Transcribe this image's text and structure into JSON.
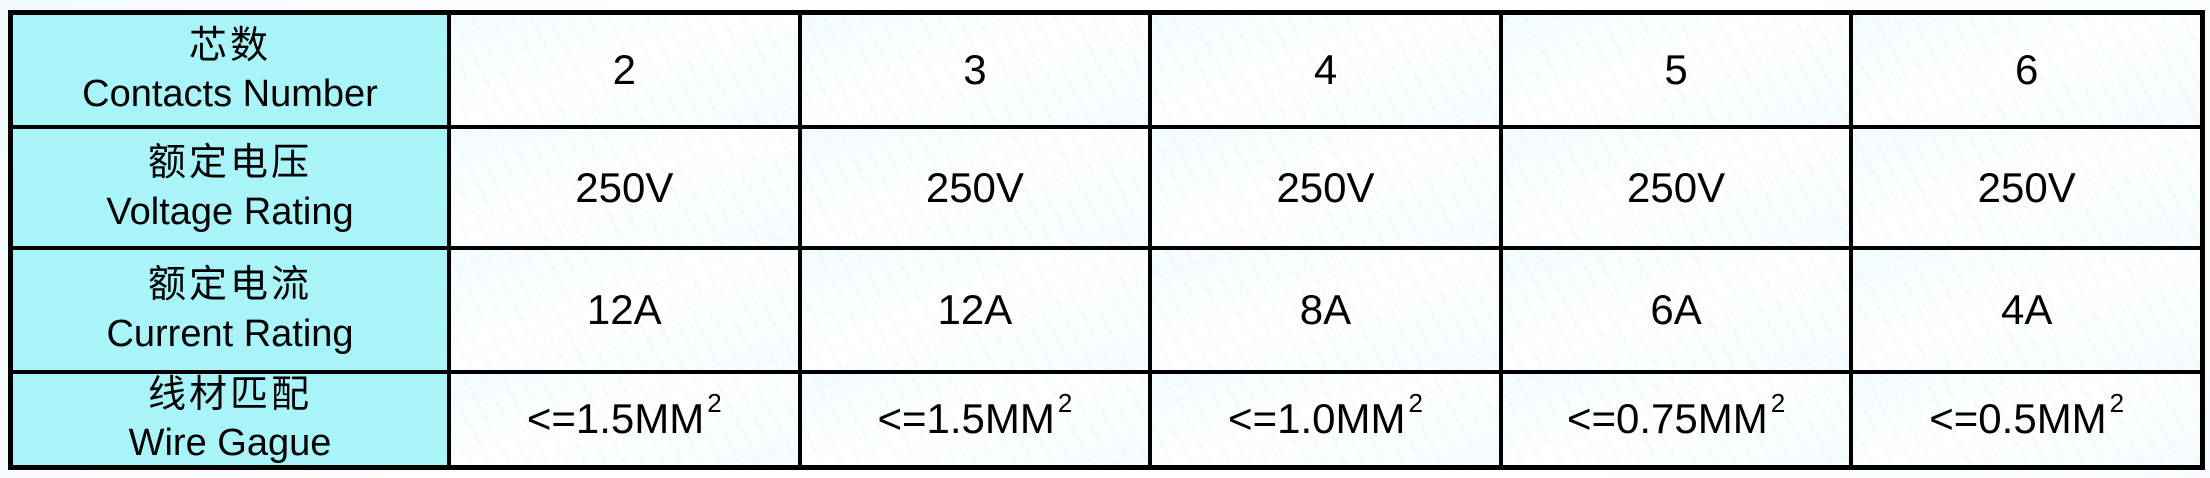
{
  "table": {
    "header_bg": "#a8f4f8",
    "border_color": "#000000",
    "text_color": "#000000",
    "rows": [
      {
        "zh": "芯数",
        "en": "Contacts Number",
        "cells": [
          {
            "text": "2"
          },
          {
            "text": "3"
          },
          {
            "text": "4"
          },
          {
            "text": "5"
          },
          {
            "text": "6"
          }
        ]
      },
      {
        "zh": "额定电压",
        "en": "Voltage Rating",
        "cells": [
          {
            "text": "250V"
          },
          {
            "text": "250V"
          },
          {
            "text": "250V"
          },
          {
            "text": "250V"
          },
          {
            "text": "250V"
          }
        ]
      },
      {
        "zh": "额定电流",
        "en": "Current Rating",
        "cells": [
          {
            "text": "12A"
          },
          {
            "text": "12A"
          },
          {
            "text": "8A"
          },
          {
            "text": "6A"
          },
          {
            "text": "4A"
          }
        ]
      },
      {
        "zh": "线材匹配",
        "en": "Wire Gague",
        "cells": [
          {
            "text": "<=1.5MM",
            "sup": "2"
          },
          {
            "text": "<=1.5MM",
            "sup": "2"
          },
          {
            "text": "<=1.0MM",
            "sup": "2"
          },
          {
            "text": "<=0.75MM",
            "sup": "2"
          },
          {
            "text": "<=0.5MM",
            "sup": "2"
          }
        ]
      }
    ]
  }
}
